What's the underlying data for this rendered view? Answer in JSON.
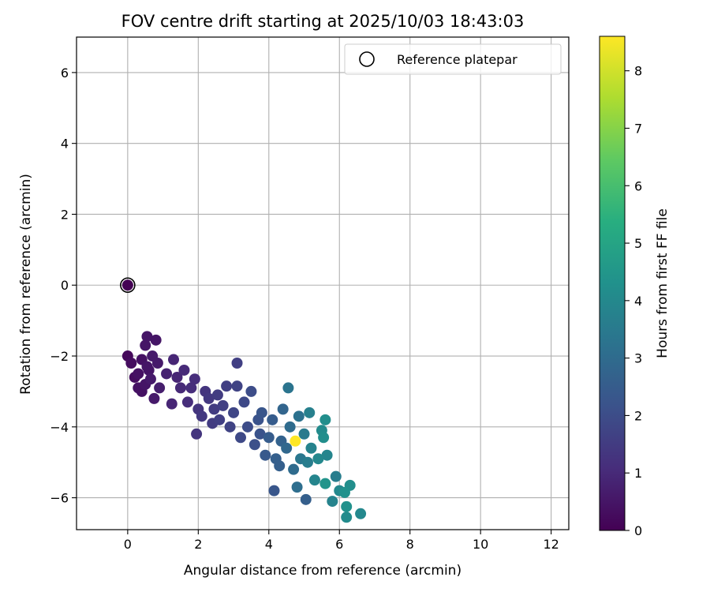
{
  "chart_data": {
    "type": "scatter",
    "title": "FOV centre drift starting at 2025/10/03 18:43:03",
    "xlabel": "Angular distance from reference (arcmin)",
    "ylabel": "Rotation from reference (arcmin)",
    "xlim": [
      -1.45,
      12.5
    ],
    "ylim": [
      -6.9,
      7.0
    ],
    "xticks": [
      0,
      2,
      4,
      6,
      8,
      10,
      12
    ],
    "yticks": [
      -6,
      -4,
      -2,
      0,
      2,
      4,
      6
    ],
    "xtick_labels": [
      "0",
      "2",
      "4",
      "6",
      "8",
      "10",
      "12"
    ],
    "ytick_labels": [
      "−6",
      "−4",
      "−2",
      "0",
      "2",
      "4",
      "6"
    ],
    "grid": true,
    "legend": {
      "label": "Reference platepar",
      "placement": "top-right"
    },
    "reference_point": {
      "x": 0,
      "y": 0
    },
    "colorbar": {
      "label": "Hours from first FF file",
      "min": 0,
      "max": 8.6,
      "ticks": [
        0,
        1,
        2,
        3,
        4,
        5,
        6,
        7,
        8
      ],
      "tick_labels": [
        "0",
        "1",
        "2",
        "3",
        "4",
        "5",
        "6",
        "7",
        "8"
      ],
      "colormap": "viridis"
    },
    "series": [
      {
        "name": "FOV centre drift",
        "points": [
          {
            "x": 0,
            "y": 0,
            "t": 0
          },
          {
            "x": 0.0,
            "y": -2.0,
            "t": 0.2
          },
          {
            "x": 0.1,
            "y": -2.2,
            "t": 0.3
          },
          {
            "x": 0.2,
            "y": -2.6,
            "t": 0.3
          },
          {
            "x": 0.3,
            "y": -2.9,
            "t": 0.4
          },
          {
            "x": 0.4,
            "y": -3.0,
            "t": 0.4
          },
          {
            "x": 0.5,
            "y": -2.8,
            "t": 0.5
          },
          {
            "x": 0.4,
            "y": -2.1,
            "t": 0.4
          },
          {
            "x": 0.5,
            "y": -1.7,
            "t": 0.5
          },
          {
            "x": 0.55,
            "y": -1.45,
            "t": 0.5
          },
          {
            "x": 0.6,
            "y": -2.4,
            "t": 0.5
          },
          {
            "x": 0.7,
            "y": -2.0,
            "t": 0.6
          },
          {
            "x": 0.8,
            "y": -1.55,
            "t": 0.5
          },
          {
            "x": 0.85,
            "y": -2.2,
            "t": 0.6
          },
          {
            "x": 0.9,
            "y": -2.9,
            "t": 0.7
          },
          {
            "x": 0.75,
            "y": -3.2,
            "t": 0.6
          },
          {
            "x": 0.65,
            "y": -2.65,
            "t": 0.6
          },
          {
            "x": 0.55,
            "y": -2.3,
            "t": 0.5
          },
          {
            "x": 0.3,
            "y": -2.5,
            "t": 0.4
          },
          {
            "x": 1.1,
            "y": -2.5,
            "t": 0.8
          },
          {
            "x": 1.3,
            "y": -2.1,
            "t": 0.9
          },
          {
            "x": 1.25,
            "y": -3.35,
            "t": 0.9
          },
          {
            "x": 1.4,
            "y": -2.6,
            "t": 0.9
          },
          {
            "x": 1.5,
            "y": -2.9,
            "t": 1.0
          },
          {
            "x": 1.6,
            "y": -2.4,
            "t": 1.0
          },
          {
            "x": 1.7,
            "y": -3.3,
            "t": 1.1
          },
          {
            "x": 1.8,
            "y": -2.9,
            "t": 1.1
          },
          {
            "x": 1.9,
            "y": -2.65,
            "t": 1.1
          },
          {
            "x": 1.95,
            "y": -4.2,
            "t": 1.3
          },
          {
            "x": 2.0,
            "y": -3.5,
            "t": 1.3
          },
          {
            "x": 2.1,
            "y": -3.7,
            "t": 1.4
          },
          {
            "x": 2.2,
            "y": -3.0,
            "t": 1.3
          },
          {
            "x": 2.3,
            "y": -3.2,
            "t": 1.4
          },
          {
            "x": 2.4,
            "y": -3.9,
            "t": 1.5
          },
          {
            "x": 2.45,
            "y": -3.5,
            "t": 1.5
          },
          {
            "x": 2.55,
            "y": -3.1,
            "t": 1.5
          },
          {
            "x": 2.6,
            "y": -3.8,
            "t": 1.6
          },
          {
            "x": 2.7,
            "y": -3.4,
            "t": 1.6
          },
          {
            "x": 2.8,
            "y": -2.85,
            "t": 1.6
          },
          {
            "x": 2.9,
            "y": -4.0,
            "t": 1.7
          },
          {
            "x": 3.0,
            "y": -3.6,
            "t": 1.8
          },
          {
            "x": 3.1,
            "y": -2.2,
            "t": 1.6
          },
          {
            "x": 3.1,
            "y": -2.85,
            "t": 1.7
          },
          {
            "x": 3.2,
            "y": -4.3,
            "t": 1.9
          },
          {
            "x": 3.3,
            "y": -3.3,
            "t": 1.9
          },
          {
            "x": 3.4,
            "y": -4.0,
            "t": 2.0
          },
          {
            "x": 3.5,
            "y": -3.0,
            "t": 2.0
          },
          {
            "x": 3.6,
            "y": -4.5,
            "t": 2.1
          },
          {
            "x": 3.7,
            "y": -3.8,
            "t": 2.2
          },
          {
            "x": 3.75,
            "y": -4.2,
            "t": 2.2
          },
          {
            "x": 3.8,
            "y": -3.6,
            "t": 2.3
          },
          {
            "x": 3.9,
            "y": -4.8,
            "t": 2.4
          },
          {
            "x": 4.0,
            "y": -4.3,
            "t": 2.5
          },
          {
            "x": 4.1,
            "y": -3.8,
            "t": 2.5
          },
          {
            "x": 4.15,
            "y": -5.8,
            "t": 2.3
          },
          {
            "x": 4.2,
            "y": -4.9,
            "t": 2.6
          },
          {
            "x": 4.3,
            "y": -5.1,
            "t": 2.6
          },
          {
            "x": 4.35,
            "y": -4.4,
            "t": 2.7
          },
          {
            "x": 4.4,
            "y": -3.5,
            "t": 2.8
          },
          {
            "x": 4.5,
            "y": -4.6,
            "t": 2.9
          },
          {
            "x": 4.55,
            "y": -2.9,
            "t": 3.3
          },
          {
            "x": 4.6,
            "y": -4.0,
            "t": 3.0
          },
          {
            "x": 4.7,
            "y": -5.2,
            "t": 3.0
          },
          {
            "x": 4.75,
            "y": -4.4,
            "t": 8.6
          },
          {
            "x": 4.8,
            "y": -5.7,
            "t": 3.1
          },
          {
            "x": 4.85,
            "y": -3.7,
            "t": 3.2
          },
          {
            "x": 4.9,
            "y": -4.9,
            "t": 3.4
          },
          {
            "x": 5.0,
            "y": -4.2,
            "t": 3.5
          },
          {
            "x": 5.05,
            "y": -6.05,
            "t": 2.6
          },
          {
            "x": 5.1,
            "y": -5.0,
            "t": 3.6
          },
          {
            "x": 5.15,
            "y": -3.6,
            "t": 3.7
          },
          {
            "x": 5.2,
            "y": -4.6,
            "t": 3.8
          },
          {
            "x": 5.3,
            "y": -5.5,
            "t": 3.9
          },
          {
            "x": 5.4,
            "y": -4.9,
            "t": 4.0
          },
          {
            "x": 5.5,
            "y": -4.1,
            "t": 4.1
          },
          {
            "x": 5.55,
            "y": -4.3,
            "t": 4.2
          },
          {
            "x": 5.6,
            "y": -3.8,
            "t": 4.2
          },
          {
            "x": 5.6,
            "y": -5.6,
            "t": 4.4
          },
          {
            "x": 5.65,
            "y": -4.8,
            "t": 3.9
          },
          {
            "x": 5.8,
            "y": -6.1,
            "t": 3.8
          },
          {
            "x": 5.9,
            "y": -5.4,
            "t": 3.6
          },
          {
            "x": 6.0,
            "y": -5.8,
            "t": 4.0
          },
          {
            "x": 6.15,
            "y": -5.85,
            "t": 4.3
          },
          {
            "x": 6.2,
            "y": -6.55,
            "t": 4.1
          },
          {
            "x": 6.2,
            "y": -6.25,
            "t": 4.3
          },
          {
            "x": 6.3,
            "y": -5.65,
            "t": 4.2
          },
          {
            "x": 6.6,
            "y": -6.45,
            "t": 4.0
          }
        ]
      }
    ]
  }
}
